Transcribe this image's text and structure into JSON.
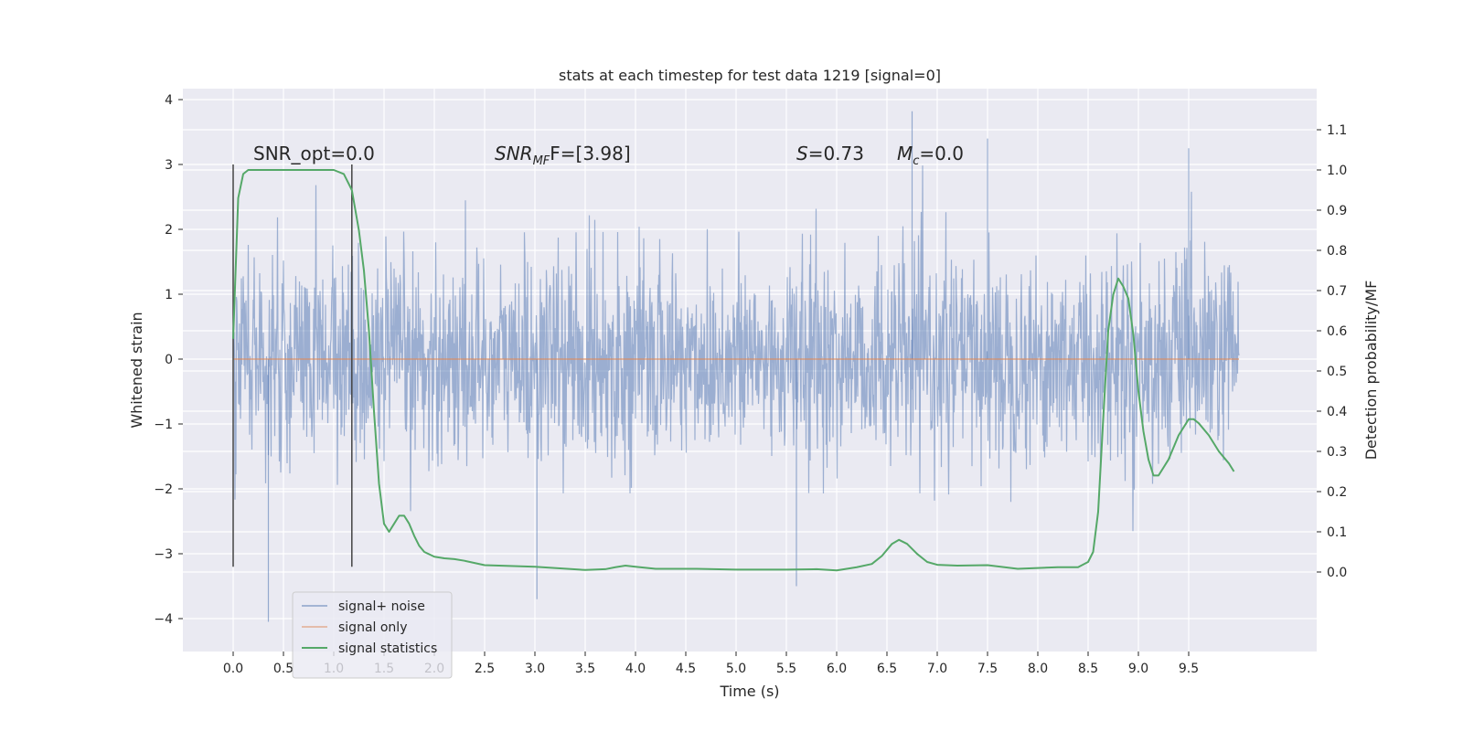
{
  "chart_data": {
    "type": "line",
    "title": "stats at each timestep for test data 1219 [signal=0]",
    "xlabel": "Time (s)",
    "ylabel": "Whitened strain",
    "y2label": "Detection probability/MF",
    "xlim": [
      -0.48,
      10.48
    ],
    "ylim": [
      -4.4,
      4.2
    ],
    "y2lim": [
      -0.2,
      1.19
    ],
    "x_ticks": [
      0.0,
      0.5,
      1.0,
      1.5,
      2.0,
      2.5,
      3.0,
      3.5,
      4.0,
      4.5,
      5.0,
      5.5,
      6.0,
      6.5,
      7.0,
      7.5,
      8.0,
      8.5,
      9.0,
      9.5
    ],
    "x_tick_labels": [
      "0.0",
      "0.5",
      "1.0",
      "1.5",
      "2.0",
      "2.5",
      "3.0",
      "3.5",
      "4.0",
      "4.5",
      "5.0",
      "5.5",
      "6.0",
      "6.5",
      "7.0",
      "7.5",
      "8.0",
      "8.5",
      "9.0",
      "9.5"
    ],
    "y_ticks": [
      4,
      3,
      2,
      1,
      0,
      -1,
      -2,
      -3,
      -4
    ],
    "y_tick_labels": [
      "4",
      "3",
      "2",
      "1",
      "0",
      "−1",
      "−2",
      "−3",
      "−4"
    ],
    "y2_ticks": [
      1.1,
      1.0,
      0.9,
      0.8,
      0.7,
      0.6,
      0.5,
      0.4,
      0.3,
      0.2,
      0.1,
      0.0
    ],
    "y2_tick_labels": [
      "1.1",
      "1.0",
      "0.9",
      "0.8",
      "0.7",
      "0.6",
      "0.5",
      "0.4",
      "0.3",
      "0.2",
      "0.1",
      "0.0"
    ],
    "grid": true,
    "legend_position": "lower-left",
    "colors": {
      "background": "#eaeaf2",
      "grid": "#ffffff",
      "noise": "#4c72b0",
      "signal": "#dd8452",
      "stats": "#55a868",
      "window": "#444444"
    },
    "series": [
      {
        "name": "signal+ noise",
        "axis": "left",
        "style": "dense noise trace, amplitude std about 0.75, extremes about -4.05 to 3.8",
        "envelope_x": [
          0.0,
          10.0
        ],
        "min": -4.05,
        "max": 3.82
      },
      {
        "name": "signal only",
        "axis": "left",
        "x": [
          0.0,
          10.0
        ],
        "y": [
          0.0,
          0.0
        ]
      },
      {
        "name": "signal statistics",
        "axis": "right",
        "x": [
          0.0,
          0.05,
          0.1,
          0.15,
          0.25,
          0.5,
          0.75,
          1.0,
          1.1,
          1.18,
          1.25,
          1.3,
          1.35,
          1.4,
          1.45,
          1.5,
          1.55,
          1.6,
          1.65,
          1.7,
          1.75,
          1.8,
          1.85,
          1.9,
          2.0,
          2.1,
          2.2,
          2.3,
          2.5,
          3.0,
          3.5,
          3.7,
          3.8,
          3.9,
          4.0,
          4.2,
          4.6,
          5.0,
          5.5,
          5.8,
          6.0,
          6.2,
          6.35,
          6.45,
          6.55,
          6.62,
          6.7,
          6.8,
          6.9,
          7.0,
          7.2,
          7.5,
          7.8,
          8.0,
          8.2,
          8.4,
          8.5,
          8.55,
          8.6,
          8.65,
          8.7,
          8.75,
          8.8,
          8.85,
          8.9,
          8.95,
          9.0,
          9.05,
          9.1,
          9.15,
          9.2,
          9.3,
          9.4,
          9.5,
          9.55,
          9.6,
          9.7,
          9.8,
          9.9,
          9.95
        ],
        "y": [
          0.58,
          0.93,
          0.99,
          1.0,
          1.0,
          1.0,
          1.0,
          1.0,
          0.99,
          0.95,
          0.85,
          0.75,
          0.6,
          0.4,
          0.22,
          0.12,
          0.1,
          0.12,
          0.14,
          0.14,
          0.12,
          0.09,
          0.065,
          0.05,
          0.038,
          0.034,
          0.032,
          0.028,
          0.017,
          0.013,
          0.005,
          0.007,
          0.012,
          0.016,
          0.013,
          0.008,
          0.008,
          0.006,
          0.006,
          0.007,
          0.004,
          0.012,
          0.02,
          0.04,
          0.07,
          0.08,
          0.07,
          0.045,
          0.025,
          0.018,
          0.016,
          0.017,
          0.008,
          0.01,
          0.012,
          0.012,
          0.025,
          0.05,
          0.15,
          0.38,
          0.6,
          0.69,
          0.73,
          0.71,
          0.68,
          0.59,
          0.45,
          0.35,
          0.28,
          0.24,
          0.24,
          0.28,
          0.34,
          0.38,
          0.38,
          0.37,
          0.34,
          0.3,
          0.27,
          0.25
        ]
      }
    ],
    "window_markers": [
      0.0,
      1.18
    ],
    "window_marker_y_range": [
      -3.2,
      3.0
    ],
    "annotations": [
      {
        "id": "snr-opt",
        "text": "SNR_opt=0.0",
        "x": 0.2,
        "y": 3.0
      },
      {
        "id": "snr-mf",
        "main": "SNR",
        "sub": "MF",
        "tail": "F=[3.98]",
        "x": 2.6,
        "y": 3.0
      },
      {
        "id": "s",
        "main": "S",
        "tail": "=0.73",
        "x": 5.6,
        "y": 3.0
      },
      {
        "id": "mc",
        "main": "M",
        "sub": "c",
        "tail": "=0.0",
        "x": 6.6,
        "y": 3.0
      }
    ],
    "legend": {
      "entries": [
        {
          "label": "signal+ noise",
          "color": "#4c72b0"
        },
        {
          "label": "signal only",
          "color": "#dd8452"
        },
        {
          "label": "signal statistics",
          "color": "#55a868"
        }
      ]
    }
  }
}
